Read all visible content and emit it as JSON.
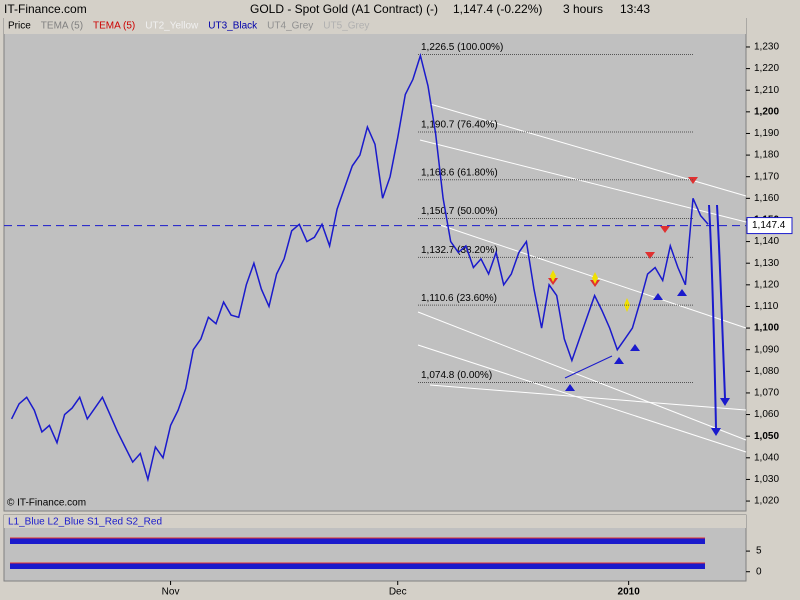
{
  "header": {
    "site": "IT-Finance.com",
    "title": "GOLD - Spot Gold (A1 Contract) (-)",
    "quote": "1,147.4 (-0.22%)",
    "interval": "3 hours",
    "time": "13:43"
  },
  "chart_data": {
    "type": "line",
    "legend": [
      {
        "name": "Price",
        "color": "#000000"
      },
      {
        "name": "TEMA (5)",
        "color": "#808080"
      },
      {
        "name": "TEMA (5)",
        "color": "#cc0000"
      },
      {
        "name": "UT2_Yellow",
        "color": "#f0f0f0"
      },
      {
        "name": "UT3_Black",
        "color": "#0000aa"
      },
      {
        "name": "UT4_Grey",
        "color": "#909090"
      },
      {
        "name": "UT5_Grey",
        "color": "#b0b0b0"
      }
    ],
    "series": [
      {
        "color": "#1a1acc",
        "x": [
          1,
          2,
          3,
          4,
          5,
          6,
          7,
          8,
          9,
          10,
          11,
          12,
          13,
          14,
          15,
          16,
          17,
          18,
          19,
          20,
          21,
          22,
          23,
          24,
          25,
          26,
          27,
          28,
          29,
          30,
          31,
          32,
          33,
          34,
          35,
          36,
          37,
          38,
          39,
          40,
          41,
          42,
          43,
          44,
          45,
          46,
          47,
          48,
          49,
          50,
          51,
          52,
          53,
          54,
          55,
          56,
          57,
          58,
          59,
          60,
          61,
          62,
          63,
          64,
          65,
          66,
          67,
          68,
          69,
          70,
          71,
          72,
          73,
          74,
          75,
          76,
          77,
          78,
          79,
          80,
          81,
          82,
          83,
          84,
          85,
          86,
          87,
          88,
          89,
          90,
          91,
          92,
          93
        ],
        "values": [
          1058,
          1065,
          1068,
          1062,
          1052,
          1055,
          1047,
          1060,
          1063,
          1068,
          1058,
          1063,
          1068,
          1060,
          1052,
          1045,
          1038,
          1042,
          1030,
          1045,
          1040,
          1055,
          1062,
          1072,
          1090,
          1095,
          1105,
          1102,
          1112,
          1106,
          1105,
          1120,
          1130,
          1118,
          1110,
          1125,
          1132,
          1145,
          1148,
          1140,
          1142,
          1148,
          1138,
          1155,
          1165,
          1175,
          1180,
          1193,
          1185,
          1160,
          1170,
          1188,
          1208,
          1215,
          1226,
          1212,
          1190,
          1160,
          1140,
          1135,
          1138,
          1128,
          1132,
          1125,
          1135,
          1120,
          1125,
          1135,
          1140,
          1118,
          1100,
          1120,
          1115,
          1095,
          1085,
          1095,
          1105,
          1115,
          1108,
          1100,
          1090,
          1095,
          1100,
          1112,
          1125,
          1128,
          1122,
          1138,
          1128,
          1120,
          1160,
          1152,
          1148
        ]
      }
    ],
    "xlim": [
      0,
      98
    ],
    "xticks": [
      {
        "value": 22,
        "label": "Nov"
      },
      {
        "value": 52,
        "label": "Dec"
      },
      {
        "value": 82.5,
        "label": "2010"
      }
    ],
    "ylim": [
      1015.4,
      1243.4
    ],
    "yticks": [
      {
        "value": 1020,
        "label": "1,020"
      },
      {
        "value": 1030,
        "label": "1,030"
      },
      {
        "value": 1040,
        "label": "1,040"
      },
      {
        "value": 1050,
        "label": "1,050"
      },
      {
        "value": 1060,
        "label": "1,060"
      },
      {
        "value": 1070,
        "label": "1,070"
      },
      {
        "value": 1080,
        "label": "1,080"
      },
      {
        "value": 1090,
        "label": "1,090"
      },
      {
        "value": 1100,
        "label": "1,100"
      },
      {
        "value": 1110,
        "label": "1,110"
      },
      {
        "value": 1120,
        "label": "1,120"
      },
      {
        "value": 1130,
        "label": "1,130"
      },
      {
        "value": 1140,
        "label": "1,140"
      },
      {
        "value": 1150,
        "label": "1,150"
      },
      {
        "value": 1160,
        "label": "1,160"
      },
      {
        "value": 1170,
        "label": "1,170"
      },
      {
        "value": 1180,
        "label": "1,180"
      },
      {
        "value": 1190,
        "label": "1,190"
      },
      {
        "value": 1200,
        "label": "1,200"
      },
      {
        "value": 1210,
        "label": "1,210"
      },
      {
        "value": 1220,
        "label": "1,220"
      },
      {
        "value": 1230,
        "label": "1,230"
      }
    ],
    "fib": [
      {
        "value": 1226.5,
        "label": "1,226.5 (100.00%)"
      },
      {
        "value": 1190.7,
        "label": "1,190.7 (76.40%)"
      },
      {
        "value": 1168.6,
        "label": "1,168.6 (61.80%)"
      },
      {
        "value": 1150.7,
        "label": "1,150.7 (50.00%)"
      },
      {
        "value": 1132.7,
        "label": "1,132.7 (38.20%)"
      },
      {
        "value": 1110.6,
        "label": "1,110.6 (23.60%)"
      },
      {
        "value": 1074.8,
        "label": "1,074.8 (0.00%)"
      }
    ],
    "last": {
      "value": 1147.4,
      "label": "1,147.4"
    },
    "watermark": "© IT-Finance.com",
    "indicator": {
      "title": "L1_Blue L2_Blue S1_Red S2_Red",
      "ylim": [
        -2.25,
        13.75
      ],
      "yticks": [
        5,
        0
      ]
    }
  }
}
